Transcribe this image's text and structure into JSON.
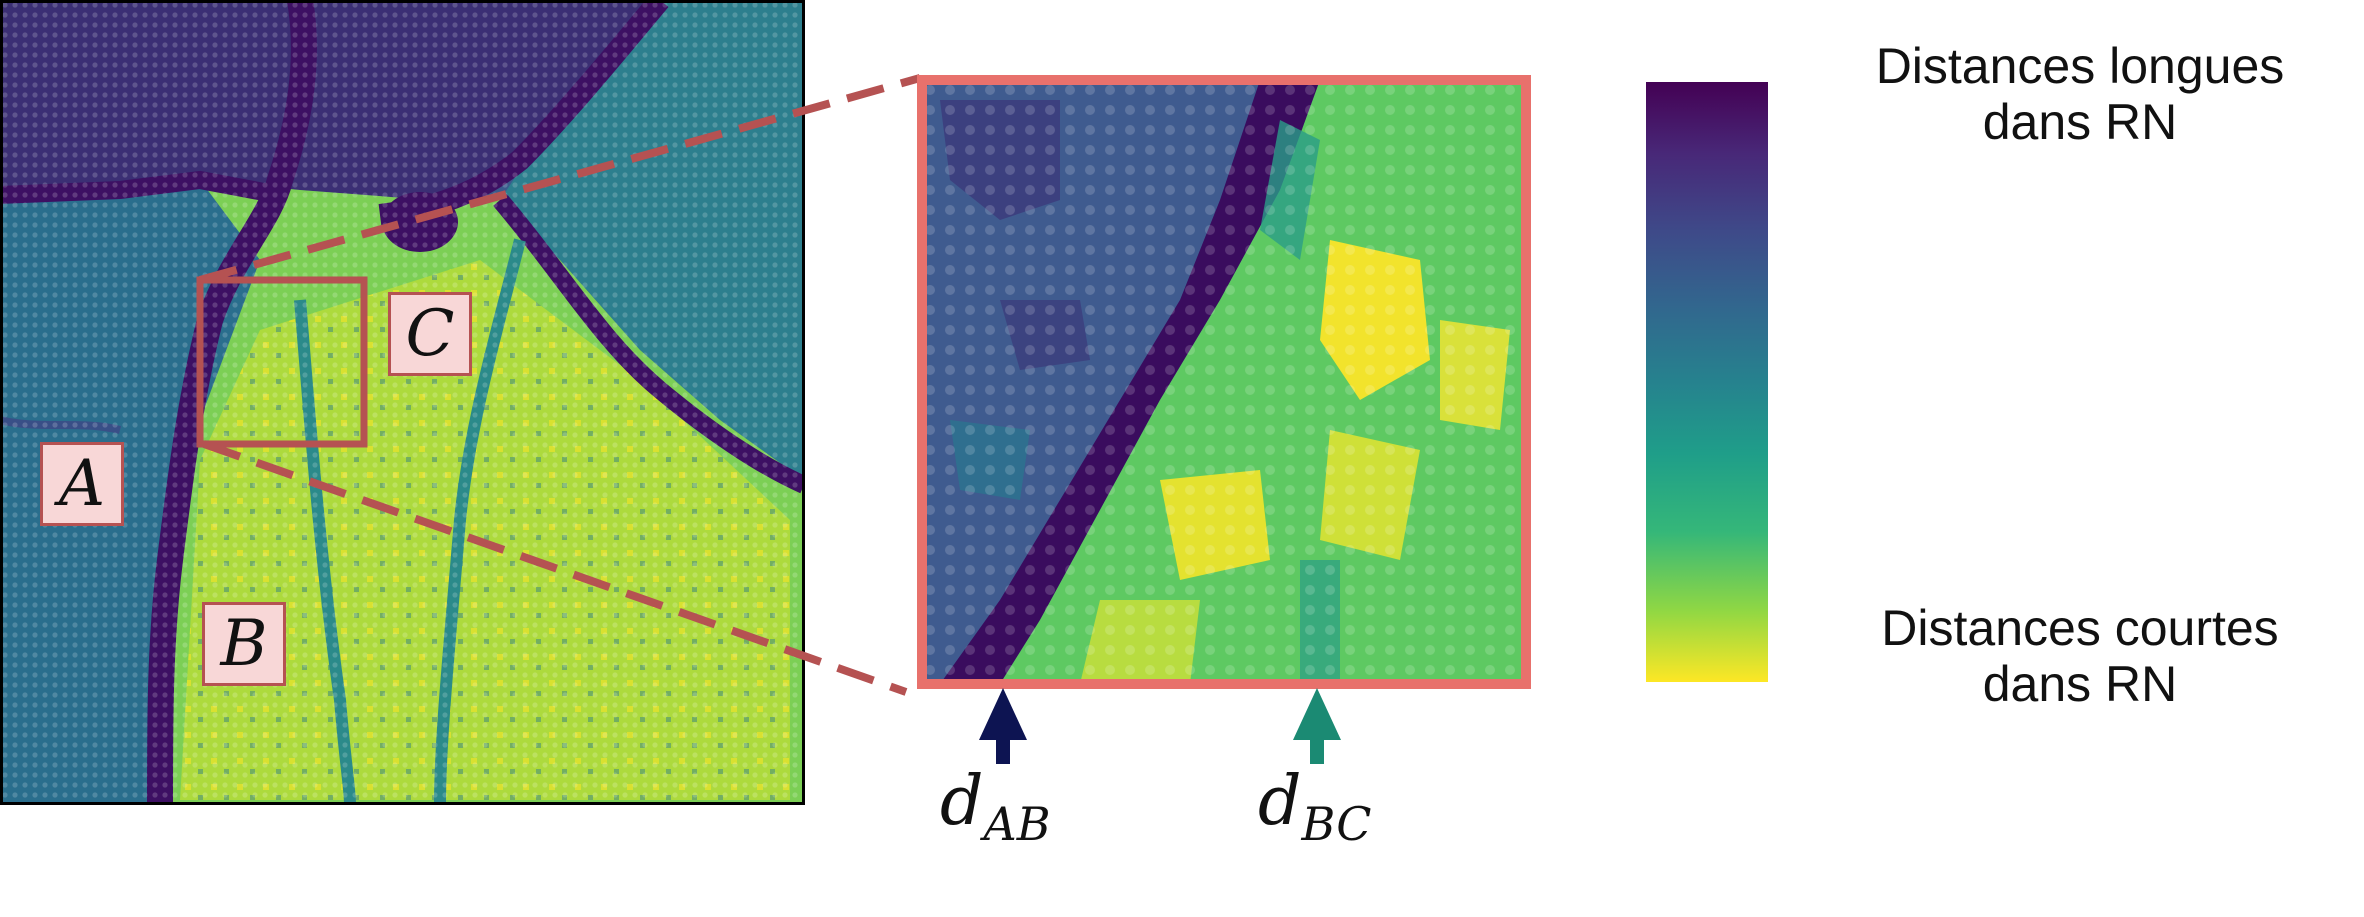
{
  "regions": {
    "a": "A",
    "b": "B",
    "c": "C"
  },
  "distances": {
    "ab_main": "d",
    "ab_sub": "AB",
    "bc_main": "d",
    "bc_sub": "BC"
  },
  "legend": {
    "top_line1": "Distances longues",
    "top_line2": "dans RN",
    "bottom_line1": "Distances courtes",
    "bottom_line2": "dans RN"
  },
  "colors": {
    "viridis_dark": "#440154",
    "viridis_deep": "#3b1d6b",
    "viridis_blue": "#3a528b",
    "viridis_teal": "#21918c",
    "viridis_green": "#5ec962",
    "viridis_yellow": "#fde725",
    "callout": "#b55252",
    "zoom_border": "#e8716c",
    "arrow_ab": "#0d1452",
    "arrow_bc": "#1b8a73"
  }
}
